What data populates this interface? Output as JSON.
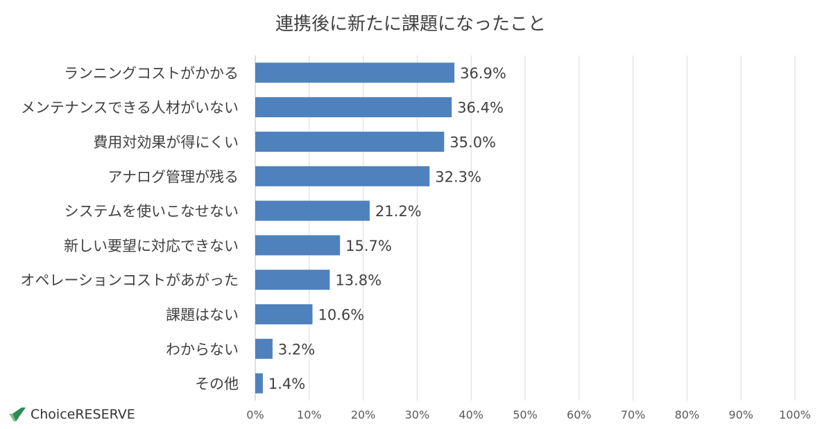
{
  "chart_data": {
    "type": "bar",
    "orientation": "horizontal",
    "title": "連携後に新たに課題になったこと",
    "categories": [
      "ランニングコストがかかる",
      "メンテナンスできる人材がいない",
      "費用対効果が得にくい",
      "アナログ管理が残る",
      "システムを使いこなせない",
      "新しい要望に対応できない",
      "オペレーションコストがあがった",
      "課題はない",
      "わからない",
      "その他"
    ],
    "values": [
      36.9,
      36.4,
      35.0,
      32.3,
      21.2,
      15.7,
      13.8,
      10.6,
      3.2,
      1.4
    ],
    "value_labels": [
      "36.9%",
      "36.4%",
      "35.0%",
      "32.3%",
      "21.2%",
      "15.7%",
      "13.8%",
      "10.6%",
      "3.2%",
      "1.4%"
    ],
    "xlim": [
      0,
      100
    ],
    "x_ticks": [
      "0%",
      "10%",
      "20%",
      "30%",
      "40%",
      "50%",
      "60%",
      "70%",
      "80%",
      "90%",
      "100%"
    ],
    "grid": true,
    "bar_color": "#4f81bd",
    "grid_color": "#d9d9d9",
    "xlabel": "",
    "ylabel": ""
  },
  "brand": {
    "name": "ChoiceRESERVE",
    "check_color": "#2e8b57",
    "check_dark": "#1e5631"
  }
}
